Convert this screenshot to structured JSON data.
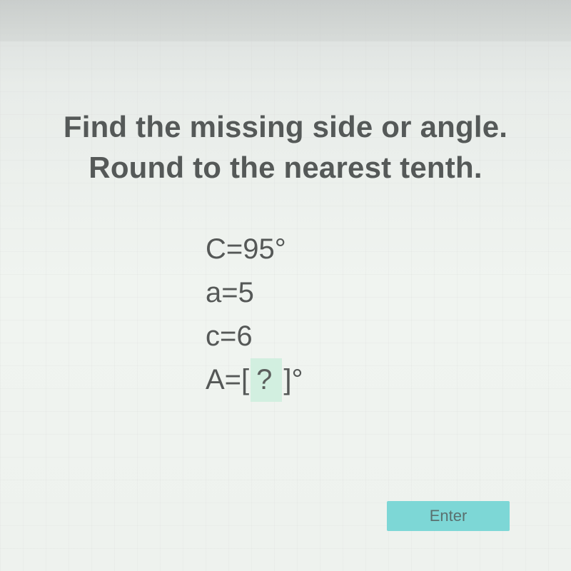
{
  "heading": {
    "line1": "Find the missing side or angle.",
    "line2": "Round to the nearest tenth."
  },
  "equations": {
    "line1": "C=95°",
    "line2": "a=5",
    "line3": "c=6",
    "answer_prefix": "A=[",
    "answer_placeholder": " ? ",
    "answer_suffix": "]°"
  },
  "button": {
    "enter": "Enter"
  },
  "colors": {
    "text": "#555958",
    "answer_bg": "#d2efe0",
    "button_bg": "#7dd7d6",
    "button_text": "#5a706f"
  }
}
